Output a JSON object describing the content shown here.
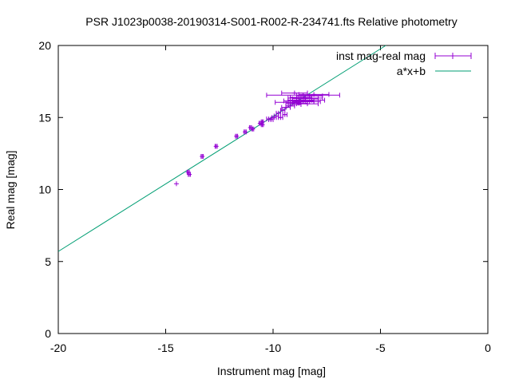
{
  "chart_data": {
    "type": "scatter",
    "title": "PSR J1023p0038-20190314-S001-R002-R-234741.fts Relative photometry",
    "xlabel": "Instrument mag [mag]",
    "ylabel": "Real mag [mag]",
    "xlim": [
      -20,
      0
    ],
    "ylim": [
      0,
      20
    ],
    "xticks": [
      -20,
      -15,
      -10,
      -5,
      0
    ],
    "yticks": [
      0,
      5,
      10,
      15,
      20
    ],
    "grid": false,
    "legend_position": "top-right",
    "series": [
      {
        "name": "inst mag-real mag",
        "kind": "points-with-xerrorbars",
        "color": "#9400d3",
        "points": [
          {
            "x": -14.5,
            "y": 10.4,
            "xerr": 0.0
          },
          {
            "x": -13.95,
            "y": 11.2,
            "xerr": 0.05
          },
          {
            "x": -13.9,
            "y": 11.05,
            "xerr": 0.05
          },
          {
            "x": -13.3,
            "y": 12.3,
            "xerr": 0.05
          },
          {
            "x": -12.65,
            "y": 13.0,
            "xerr": 0.05
          },
          {
            "x": -11.7,
            "y": 13.7,
            "xerr": 0.05
          },
          {
            "x": -11.3,
            "y": 14.0,
            "xerr": 0.05
          },
          {
            "x": -11.05,
            "y": 14.3,
            "xerr": 0.05
          },
          {
            "x": -10.95,
            "y": 14.2,
            "xerr": 0.05
          },
          {
            "x": -10.6,
            "y": 14.6,
            "xerr": 0.05
          },
          {
            "x": -10.5,
            "y": 14.7,
            "xerr": 0.05
          },
          {
            "x": -10.5,
            "y": 14.5,
            "xerr": 0.05
          },
          {
            "x": -10.2,
            "y": 14.9,
            "xerr": 0.1
          },
          {
            "x": -10.1,
            "y": 14.85,
            "xerr": 0.1
          },
          {
            "x": -9.95,
            "y": 15.0,
            "xerr": 0.1
          },
          {
            "x": -9.85,
            "y": 15.1,
            "xerr": 0.1
          },
          {
            "x": -9.75,
            "y": 15.3,
            "xerr": 0.1
          },
          {
            "x": -9.65,
            "y": 15.0,
            "xerr": 0.1
          },
          {
            "x": -9.55,
            "y": 15.5,
            "xerr": 0.1
          },
          {
            "x": -9.45,
            "y": 15.2,
            "xerr": 0.1
          },
          {
            "x": -9.4,
            "y": 15.7,
            "xerr": 0.2
          },
          {
            "x": -9.2,
            "y": 15.8,
            "xerr": 0.2
          },
          {
            "x": -9.1,
            "y": 16.0,
            "xerr": 0.3
          },
          {
            "x": -9.0,
            "y": 15.9,
            "xerr": 0.3
          },
          {
            "x": -8.9,
            "y": 16.2,
            "xerr": 0.4
          },
          {
            "x": -8.8,
            "y": 16.0,
            "xerr": 0.4
          },
          {
            "x": -8.7,
            "y": 16.4,
            "xerr": 0.5
          },
          {
            "x": -8.6,
            "y": 16.1,
            "xerr": 0.5
          },
          {
            "x": -8.5,
            "y": 16.3,
            "xerr": 0.6
          },
          {
            "x": -8.4,
            "y": 15.95,
            "xerr": 0.5
          },
          {
            "x": -8.3,
            "y": 16.5,
            "xerr": 0.6
          },
          {
            "x": -8.2,
            "y": 16.2,
            "xerr": 0.6
          },
          {
            "x": -8.1,
            "y": 16.6,
            "xerr": 0.7
          },
          {
            "x": -9.0,
            "y": 16.7,
            "xerr": 0.6
          },
          {
            "x": -8.6,
            "y": 16.55,
            "xerr": 1.7
          },
          {
            "x": -8.5,
            "y": 16.35,
            "xerr": 0.8
          },
          {
            "x": -8.8,
            "y": 16.15,
            "xerr": 0.7
          },
          {
            "x": -9.3,
            "y": 16.05,
            "xerr": 0.6
          },
          {
            "x": -8.3,
            "y": 16.1,
            "xerr": 0.5
          }
        ]
      },
      {
        "name": "a*x+b",
        "kind": "line",
        "color": "#009e73",
        "x": [
          -20,
          -4.75
        ],
        "y": [
          5.7,
          20
        ]
      }
    ]
  }
}
